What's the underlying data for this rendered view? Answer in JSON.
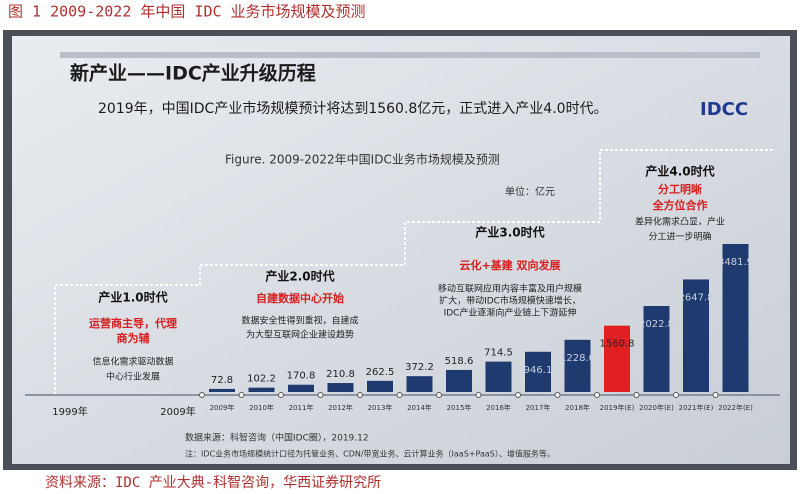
{
  "chart_data": {
    "type": "bar",
    "header": "图 1   2009-2022 年中国 IDC 业务市场规模及预测",
    "slide_title": "新产业——IDC产业升级历程",
    "subtitle": "2019年，中国IDC产业市场规模预计将达到1560.8亿元，正式进入产业4.0时代。",
    "logo": "IDCC",
    "title": "Figure. 2009-2022年中国IDC业务市场规模及预测",
    "unit": "单位：亿元",
    "categories": [
      "2009年",
      "2010年",
      "2011年",
      "2012年",
      "2013年",
      "2014年",
      "2015年",
      "2016年",
      "2017年",
      "2018年",
      "2019年(E)",
      "2020年(E)",
      "2021年(E)",
      "2022年(E)"
    ],
    "values": [
      72.8,
      102.2,
      170.8,
      210.8,
      262.5,
      372.2,
      518.6,
      714.5,
      946.1,
      1228.0,
      1560.8,
      2022.8,
      2647.8,
      3481.9
    ],
    "value_labels": [
      "72.8",
      "102.2",
      "170.8",
      "210.8",
      "262.5",
      "372.2",
      "518.6",
      "714.5",
      "946.1",
      "1228.0",
      "1560.8",
      "2022.8",
      "2647.8",
      "3481.9"
    ],
    "color": "#1f3a6e",
    "highlight_color": "#e02020",
    "highlight_index": 10,
    "stages": [
      {
        "title": "产业1.0时代",
        "highlight": [
          "运营商主导，代理",
          "商为辅"
        ],
        "desc": [
          "信息化需求驱动数据",
          "中心行业发展"
        ]
      },
      {
        "title": "产业2.0时代",
        "highlight": [
          "自建数据中心开始"
        ],
        "desc": [
          "数据安全性得到重视，自建成",
          "为大型互联网企业建设趋势"
        ]
      },
      {
        "title": "产业3.0时代",
        "highlight": [
          "云化+基建 双向发展"
        ],
        "desc": [
          "移动互联网应用内容丰富及用户规模",
          "扩大，带动IDC市场规模快速增长，",
          "IDC产业逐渐向产业链上下游延伸"
        ]
      },
      {
        "title": "产业4.0时代",
        "highlight": [
          "分工明晰",
          "全方位合作"
        ],
        "desc": [
          "差异化需求凸显，产业",
          "分工进一步明确"
        ]
      }
    ],
    "timeline": [
      "1999年",
      "2009年"
    ],
    "data_source": "数据来源：科智咨询（中国IDC圈），2019.12",
    "note": "注：IDC业务市场规模统计口径为托管业务、CDN/带宽业务、云计算业务（IaaS+PaaS）、增值服务等。",
    "footer": "资料来源：IDC 产业大典-科智咨询，华西证券研究所"
  }
}
